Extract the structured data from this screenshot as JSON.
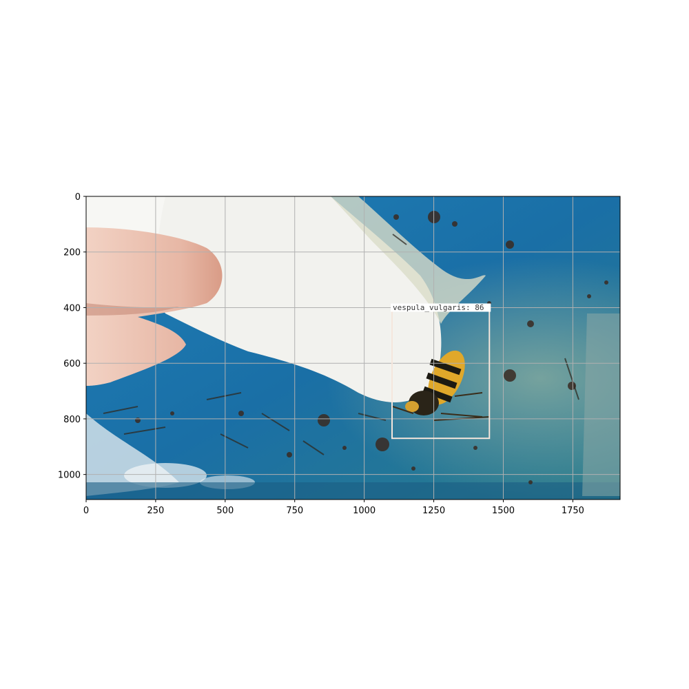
{
  "figure": {
    "image_description_icon": "photo-wasp-on-paper-towel-icon",
    "image_size": {
      "width": 1920,
      "height": 1090
    },
    "xaxis": {
      "ticks": [
        0,
        250,
        500,
        750,
        1000,
        1250,
        1500,
        1750
      ],
      "range": [
        0,
        1920
      ]
    },
    "yaxis": {
      "ticks": [
        0,
        200,
        400,
        600,
        800,
        1000
      ],
      "range": [
        0,
        1090
      ],
      "inverted": true
    },
    "grid": true,
    "colors": {
      "grid": "#b0b0b0",
      "box": "#f5e6dc",
      "label_bg": "#ffffff"
    }
  },
  "detection": {
    "label": "vespula_vulgaris: 86",
    "class": "vespula_vulgaris",
    "score": 86,
    "box_image_coords": {
      "x1": 1100,
      "y1": 400,
      "x2": 1450,
      "y2": 870
    }
  }
}
